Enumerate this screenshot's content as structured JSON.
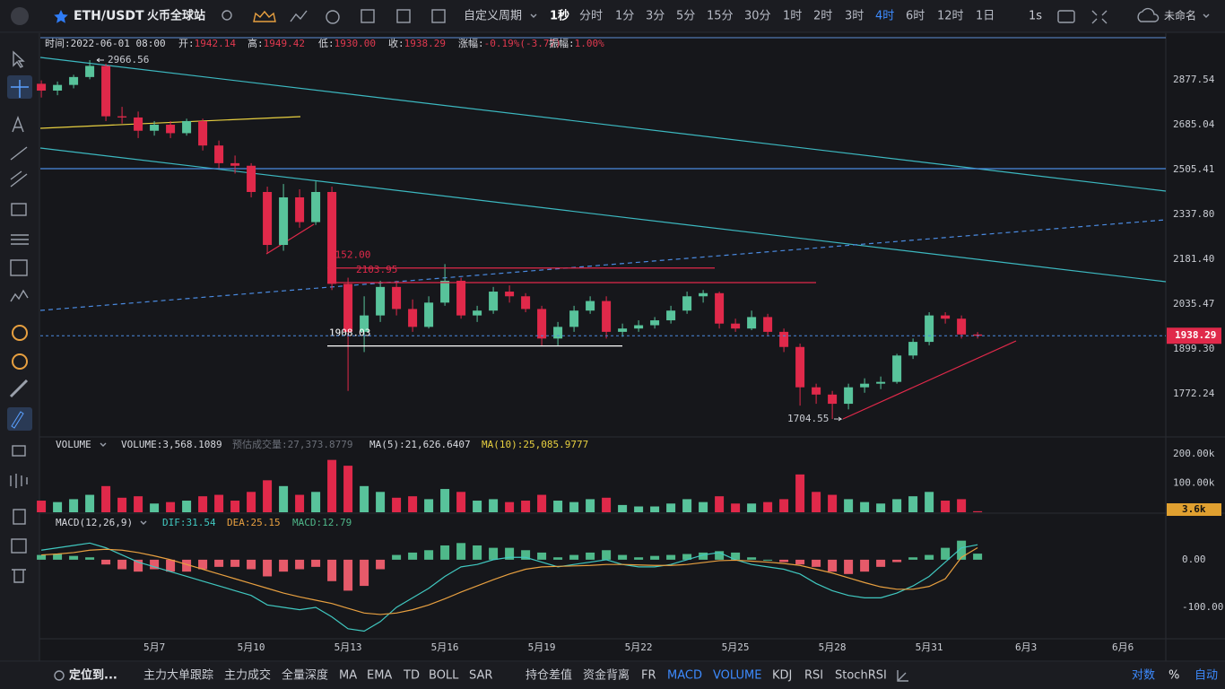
{
  "top_bar": {
    "symbol": "ETH/USDT",
    "exchange": "火币全球站",
    "periods_label": "自定义周期",
    "periods": [
      {
        "label": "1秒",
        "active": false,
        "bold": true
      },
      {
        "label": "分时"
      },
      {
        "label": "1分"
      },
      {
        "label": "3分"
      },
      {
        "label": "5分"
      },
      {
        "label": "15分"
      },
      {
        "label": "30分"
      },
      {
        "label": "1时"
      },
      {
        "label": "2时"
      },
      {
        "label": "3时"
      },
      {
        "label": "4时",
        "active": true
      },
      {
        "label": "6时"
      },
      {
        "label": "12时"
      },
      {
        "label": "1日"
      }
    ],
    "interval": "1s",
    "layout_name": "未命名"
  },
  "info_bar": [
    {
      "label": "时间:",
      "value": "2022-06-01 08:00"
    },
    {
      "label": "开:",
      "value": "1942.14"
    },
    {
      "label": "高:",
      "value": "1949.42"
    },
    {
      "label": "低:",
      "value": "1930.00"
    },
    {
      "label": "收:",
      "value": "1938.29"
    },
    {
      "label": "涨幅:",
      "value": "-0.19%(-3.77)"
    },
    {
      "label": "振幅:",
      "value": "1.00%"
    }
  ],
  "bottom_bar": {
    "locate": "定位到...",
    "indicators": [
      {
        "label": "主力大单跟踪"
      },
      {
        "label": "主力成交"
      },
      {
        "label": "全量深度"
      },
      {
        "label": "MA"
      },
      {
        "label": "EMA"
      },
      {
        "label": "TD"
      },
      {
        "label": "BOLL"
      },
      {
        "label": "SAR"
      },
      {
        "label": "持仓差值"
      },
      {
        "label": "资金背离"
      },
      {
        "label": "FR"
      },
      {
        "label": "MACD",
        "active": true
      },
      {
        "label": "VOLUME",
        "active": true
      },
      {
        "label": "KDJ"
      },
      {
        "label": "RSI"
      },
      {
        "label": "StochRSI"
      }
    ],
    "right": [
      {
        "label": "对数",
        "active": true
      },
      {
        "label": "%"
      },
      {
        "label": "自动",
        "active": true
      }
    ]
  },
  "chart_data": [
    {
      "type": "candlestick",
      "log": true,
      "up_color": "#58c39b",
      "down_color": "#e0294a",
      "x": [
        3.5,
        4,
        4.5,
        5,
        5.5,
        6,
        6.5,
        7,
        7.5,
        8,
        8.5,
        9,
        9.5,
        10,
        10.5,
        11,
        11.5,
        12,
        12.5,
        13,
        13.5,
        14,
        14.5,
        15,
        15.5,
        16,
        16.5,
        17,
        17.5,
        18,
        18.5,
        19,
        19.5,
        20,
        20.5,
        21,
        21.5,
        22,
        22.5,
        23,
        23.5,
        24,
        24.5,
        25,
        25.5,
        26,
        26.5,
        27,
        27.5,
        28,
        28.5,
        29,
        29.5,
        30,
        30.5,
        31,
        31.5,
        32,
        32.5
      ],
      "open": [
        2860,
        2830,
        2855,
        2890,
        2940,
        2720,
        2715,
        2660,
        2685,
        2650,
        2700,
        2600,
        2530,
        2520,
        2420,
        2230,
        2400,
        2310,
        2420,
        2100,
        1950,
        2000,
        2090,
        2020,
        1965,
        2040,
        2110,
        2000,
        2015,
        2075,
        2060,
        2020,
        1930,
        1965,
        2015,
        2045,
        1950,
        1960,
        1970,
        1985,
        2015,
        2060,
        2070,
        1975,
        1960,
        1995,
        1950,
        1905,
        1790,
        1770,
        1745,
        1790,
        1800,
        1805,
        1880,
        1920,
        2000,
        1990,
        1942.14
      ],
      "high": [
        2875,
        2870,
        2900,
        2966.56,
        2950,
        2760,
        2740,
        2700,
        2700,
        2710,
        2710,
        2620,
        2560,
        2530,
        2440,
        2450,
        2430,
        2460,
        2440,
        2120,
        2060,
        2110,
        2110,
        2050,
        2060,
        2165,
        2120,
        2030,
        2090,
        2095,
        2070,
        2030,
        1980,
        2030,
        2060,
        2060,
        1975,
        1985,
        1995,
        2030,
        2075,
        2080,
        2075,
        1990,
        2015,
        2005,
        1960,
        1915,
        1800,
        1780,
        1800,
        1815,
        1820,
        1885,
        1930,
        2010,
        2010,
        2000,
        1949.42
      ],
      "low": [
        2800,
        2810,
        2840,
        2880,
        2700,
        2690,
        2630,
        2640,
        2630,
        2640,
        2580,
        2510,
        2490,
        2400,
        2200,
        2210,
        2290,
        2300,
        2080,
        1780,
        1890,
        1980,
        2000,
        1950,
        1960,
        2030,
        1990,
        1980,
        2005,
        2040,
        2010,
        1910,
        1910,
        1950,
        2005,
        1930,
        1935,
        1950,
        1960,
        1975,
        2005,
        2040,
        1960,
        1950,
        1955,
        1940,
        1890,
        1740,
        1745,
        1704.55,
        1730,
        1775,
        1785,
        1800,
        1870,
        1910,
        1975,
        1930,
        1930
      ],
      "close": [
        2830,
        2855,
        2890,
        2940,
        2720,
        2715,
        2660,
        2685,
        2650,
        2700,
        2600,
        2530,
        2520,
        2420,
        2230,
        2400,
        2310,
        2420,
        2100,
        1950,
        2000,
        2090,
        2020,
        1965,
        2040,
        2110,
        2000,
        2015,
        2075,
        2060,
        2020,
        1930,
        1965,
        2015,
        2045,
        1950,
        1960,
        1970,
        1985,
        2015,
        2060,
        2070,
        1975,
        1960,
        1995,
        1950,
        1905,
        1790,
        1770,
        1745,
        1790,
        1800,
        1805,
        1880,
        1920,
        2000,
        1990,
        1942.14,
        1938.29
      ],
      "ylim": [
        1658,
        3071
      ],
      "yticks": [
        2877.54,
        2685.04,
        2505.41,
        {
          "value": 2337.8,
          "label": "2337.80"
        },
        {
          "value": 2181.4,
          "label": "2181.40"
        },
        2035.47,
        {
          "value": 1899.3,
          "label": "1899.30"
        },
        1772.24
      ],
      "xlim": [
        3.47,
        38.33
      ],
      "xticks": [
        {
          "value": 7,
          "label": "5月7"
        },
        {
          "value": 10,
          "label": "5月10"
        },
        {
          "value": 13,
          "label": "5月13"
        },
        {
          "value": 16,
          "label": "5月16"
        },
        {
          "value": 19,
          "label": "5月19"
        },
        {
          "value": 22,
          "label": "5月22"
        },
        {
          "value": 25,
          "label": "5月25"
        },
        {
          "value": 28,
          "label": "5月28"
        },
        {
          "value": 31,
          "label": "5月31"
        },
        {
          "value": 34,
          "label": "6月3"
        },
        {
          "value": 37,
          "label": "6月6"
        }
      ],
      "last_price": 1938.29,
      "price_lines": [
        {
          "value": 2152,
          "label": "2152.00",
          "color": "#e0294a"
        },
        {
          "value": 2103.95,
          "label": "2103.95",
          "color": "#e0294a"
        },
        {
          "value": 1908.03,
          "label": "1908.03",
          "color": "#ffffff"
        }
      ],
      "markers": [
        2966.56,
        1704.55
      ]
    },
    {
      "type": "bar",
      "legend": [
        "VOLUME",
        "VOLUME:3,568.1089",
        "预估成交量:27,373.8779",
        "MA(5):21,626.6407",
        "MA(10):25,085.9777"
      ],
      "values": [
        40000,
        35000,
        45000,
        60000,
        90000,
        50000,
        55000,
        30000,
        35000,
        40000,
        55000,
        60000,
        40000,
        70000,
        110000,
        90000,
        60000,
        70000,
        180000,
        160000,
        90000,
        70000,
        50000,
        55000,
        45000,
        80000,
        70000,
        40000,
        45000,
        35000,
        40000,
        60000,
        40000,
        35000,
        45000,
        50000,
        25000,
        20000,
        20000,
        30000,
        45000,
        35000,
        55000,
        30000,
        30000,
        35000,
        45000,
        130000,
        70000,
        60000,
        45000,
        35000,
        30000,
        45000,
        55000,
        70000,
        40000,
        45000,
        3568.1089
      ],
      "ylim": [
        0,
        256000
      ],
      "yticks": [
        {
          "value": 200000,
          "label": "200.00k"
        },
        {
          "value": 100000,
          "label": "100.00k"
        }
      ],
      "last_value": {
        "value": 3568.1089,
        "label": "3.6k"
      }
    },
    {
      "type": "macd",
      "legend": [
        "MACD(12,26,9)",
        "DIF:31.54",
        "DEA:25.15",
        "MACD:12.79"
      ],
      "histogram": [
        10,
        12,
        8,
        5,
        -10,
        -20,
        -25,
        -20,
        -25,
        -25,
        -20,
        -15,
        -15,
        -20,
        -35,
        -25,
        -20,
        -15,
        -45,
        -65,
        -55,
        -20,
        10,
        15,
        20,
        30,
        35,
        30,
        25,
        25,
        20,
        15,
        5,
        10,
        15,
        20,
        10,
        5,
        8,
        10,
        12,
        15,
        18,
        15,
        5,
        0,
        -5,
        -10,
        -15,
        -25,
        -30,
        -25,
        -15,
        -5,
        5,
        10,
        25,
        40,
        12.79
      ],
      "dif": [
        20,
        25,
        30,
        35,
        25,
        10,
        -5,
        -15,
        -25,
        -35,
        -45,
        -55,
        -65,
        -75,
        -95,
        -100,
        -105,
        -100,
        -120,
        -145,
        -150,
        -130,
        -100,
        -80,
        -60,
        -35,
        -15,
        -10,
        0,
        5,
        5,
        -5,
        -15,
        -10,
        -5,
        0,
        -10,
        -15,
        -15,
        -10,
        0,
        10,
        15,
        0,
        -10,
        -15,
        -20,
        -30,
        -50,
        -65,
        -75,
        -80,
        -80,
        -70,
        -55,
        -35,
        -5,
        25,
        31.54
      ],
      "dea": [
        10,
        12,
        15,
        20,
        22,
        20,
        15,
        8,
        0,
        -10,
        -20,
        -30,
        -40,
        -50,
        -60,
        -70,
        -78,
        -85,
        -92,
        -102,
        -112,
        -115,
        -112,
        -105,
        -95,
        -82,
        -68,
        -55,
        -42,
        -30,
        -20,
        -15,
        -14,
        -13,
        -12,
        -10,
        -10,
        -11,
        -12,
        -12,
        -10,
        -6,
        -2,
        -1,
        -3,
        -5,
        -8,
        -12,
        -20,
        -28,
        -38,
        -48,
        -57,
        -62,
        -62,
        -56,
        -40,
        5,
        25.15
      ],
      "up_color": "#4fb88a",
      "down_color": "#e65a6a",
      "dif_color": "#40c8c0",
      "dea_color": "#e8a040",
      "ylim": [
        -166,
        94
      ],
      "yticks": [
        {
          "value": 0,
          "label": "0.00"
        },
        {
          "value": -100,
          "label": "-100.00"
        }
      ]
    }
  ]
}
